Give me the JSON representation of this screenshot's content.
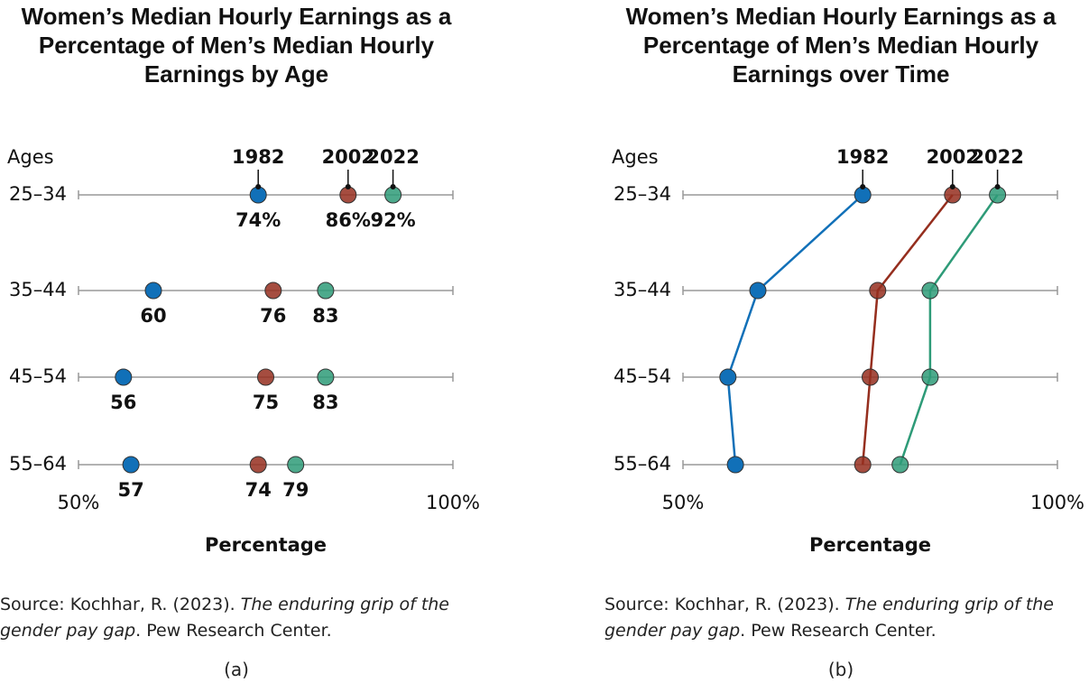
{
  "chart_data": [
    {
      "type": "dot",
      "title": "Women’s Median Hourly Earnings as a Percentage of Men’s Median Hourly Earnings by Age",
      "y_label": "Ages",
      "x_label": "Percentage",
      "categories": [
        "25–34",
        "35–44",
        "45–54",
        "55–64"
      ],
      "xlim": [
        50,
        100
      ],
      "xticks": [
        {
          "value": 50,
          "label": "50%"
        },
        {
          "value": 100,
          "label": "100%"
        }
      ],
      "series": [
        {
          "name": "1982",
          "color": "#1170b8",
          "values": [
            74,
            60,
            56,
            57
          ],
          "value_labels": [
            "74%",
            "60",
            "56",
            "57"
          ]
        },
        {
          "name": "2002",
          "color": "#952e1e",
          "values": [
            86,
            76,
            75,
            74
          ],
          "value_labels": [
            "86%",
            "76",
            "75",
            "74"
          ]
        },
        {
          "name": "2022",
          "color": "#2e9b78",
          "values": [
            92,
            83,
            83,
            79
          ],
          "value_labels": [
            "92%",
            "83",
            "83",
            "79"
          ]
        }
      ],
      "source": [
        "Source: Kochhar, R. (2023). ",
        "The enduring grip of the gender pay gap",
        ". Pew Research Center."
      ],
      "caption": "(a)"
    },
    {
      "type": "line",
      "title": "Women’s Median Hourly Earnings as a Percentage of Men’s Median Hourly Earnings over Time",
      "y_label": "Ages",
      "x_label": "Percentage",
      "categories": [
        "25–34",
        "35–44",
        "45–54",
        "55–64"
      ],
      "xlim": [
        50,
        100
      ],
      "xticks": [
        {
          "value": 50,
          "label": "50%"
        },
        {
          "value": 100,
          "label": "100%"
        }
      ],
      "series": [
        {
          "name": "1982",
          "color": "#1170b8",
          "values": [
            74,
            60,
            56,
            57
          ]
        },
        {
          "name": "2002",
          "color": "#952e1e",
          "values": [
            86,
            76,
            75,
            74
          ]
        },
        {
          "name": "2022",
          "color": "#2e9b78",
          "values": [
            92,
            83,
            83,
            79
          ]
        }
      ],
      "source": [
        "Source: Kochhar, R. (2023). ",
        "The enduring grip of the gender pay gap",
        ". Pew Research Center."
      ],
      "caption": "(b)"
    }
  ]
}
